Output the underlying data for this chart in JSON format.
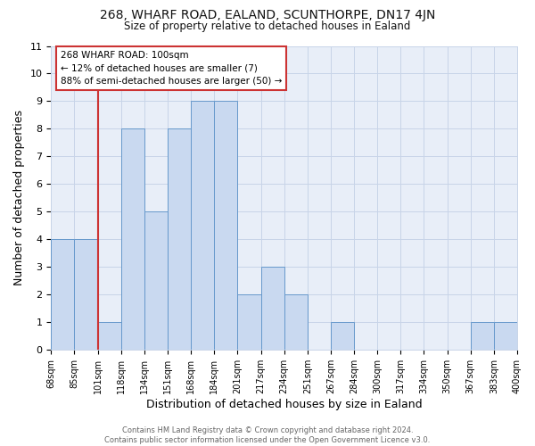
{
  "title1": "268, WHARF ROAD, EALAND, SCUNTHORPE, DN17 4JN",
  "title2": "Size of property relative to detached houses in Ealand",
  "xlabel": "Distribution of detached houses by size in Ealand",
  "ylabel": "Number of detached properties",
  "bin_labels": [
    "68sqm",
    "85sqm",
    "101sqm",
    "118sqm",
    "134sqm",
    "151sqm",
    "168sqm",
    "184sqm",
    "201sqm",
    "217sqm",
    "234sqm",
    "251sqm",
    "267sqm",
    "284sqm",
    "300sqm",
    "317sqm",
    "334sqm",
    "350sqm",
    "367sqm",
    "383sqm",
    "400sqm"
  ],
  "bar_heights": [
    4,
    4,
    1,
    8,
    5,
    8,
    9,
    9,
    2,
    3,
    2,
    0,
    1,
    0,
    0,
    0,
    0,
    0,
    1,
    1,
    0
  ],
  "bar_color": "#c9d9f0",
  "bar_edge_color": "#6699cc",
  "vline_x": 2,
  "vline_color": "#cc3333",
  "ylim": [
    0,
    11
  ],
  "yticks": [
    0,
    1,
    2,
    3,
    4,
    5,
    6,
    7,
    8,
    9,
    10,
    11
  ],
  "grid_color": "#c8d4e8",
  "annotation_box_text": [
    "268 WHARF ROAD: 100sqm",
    "← 12% of detached houses are smaller (7)",
    "88% of semi-detached houses are larger (50) →"
  ],
  "annotation_box_edge_color": "#cc3333",
  "footer_line1": "Contains HM Land Registry data © Crown copyright and database right 2024.",
  "footer_line2": "Contains public sector information licensed under the Open Government Licence v3.0.",
  "fig_bg_color": "#ffffff",
  "plot_bg_color": "#e8eef8"
}
